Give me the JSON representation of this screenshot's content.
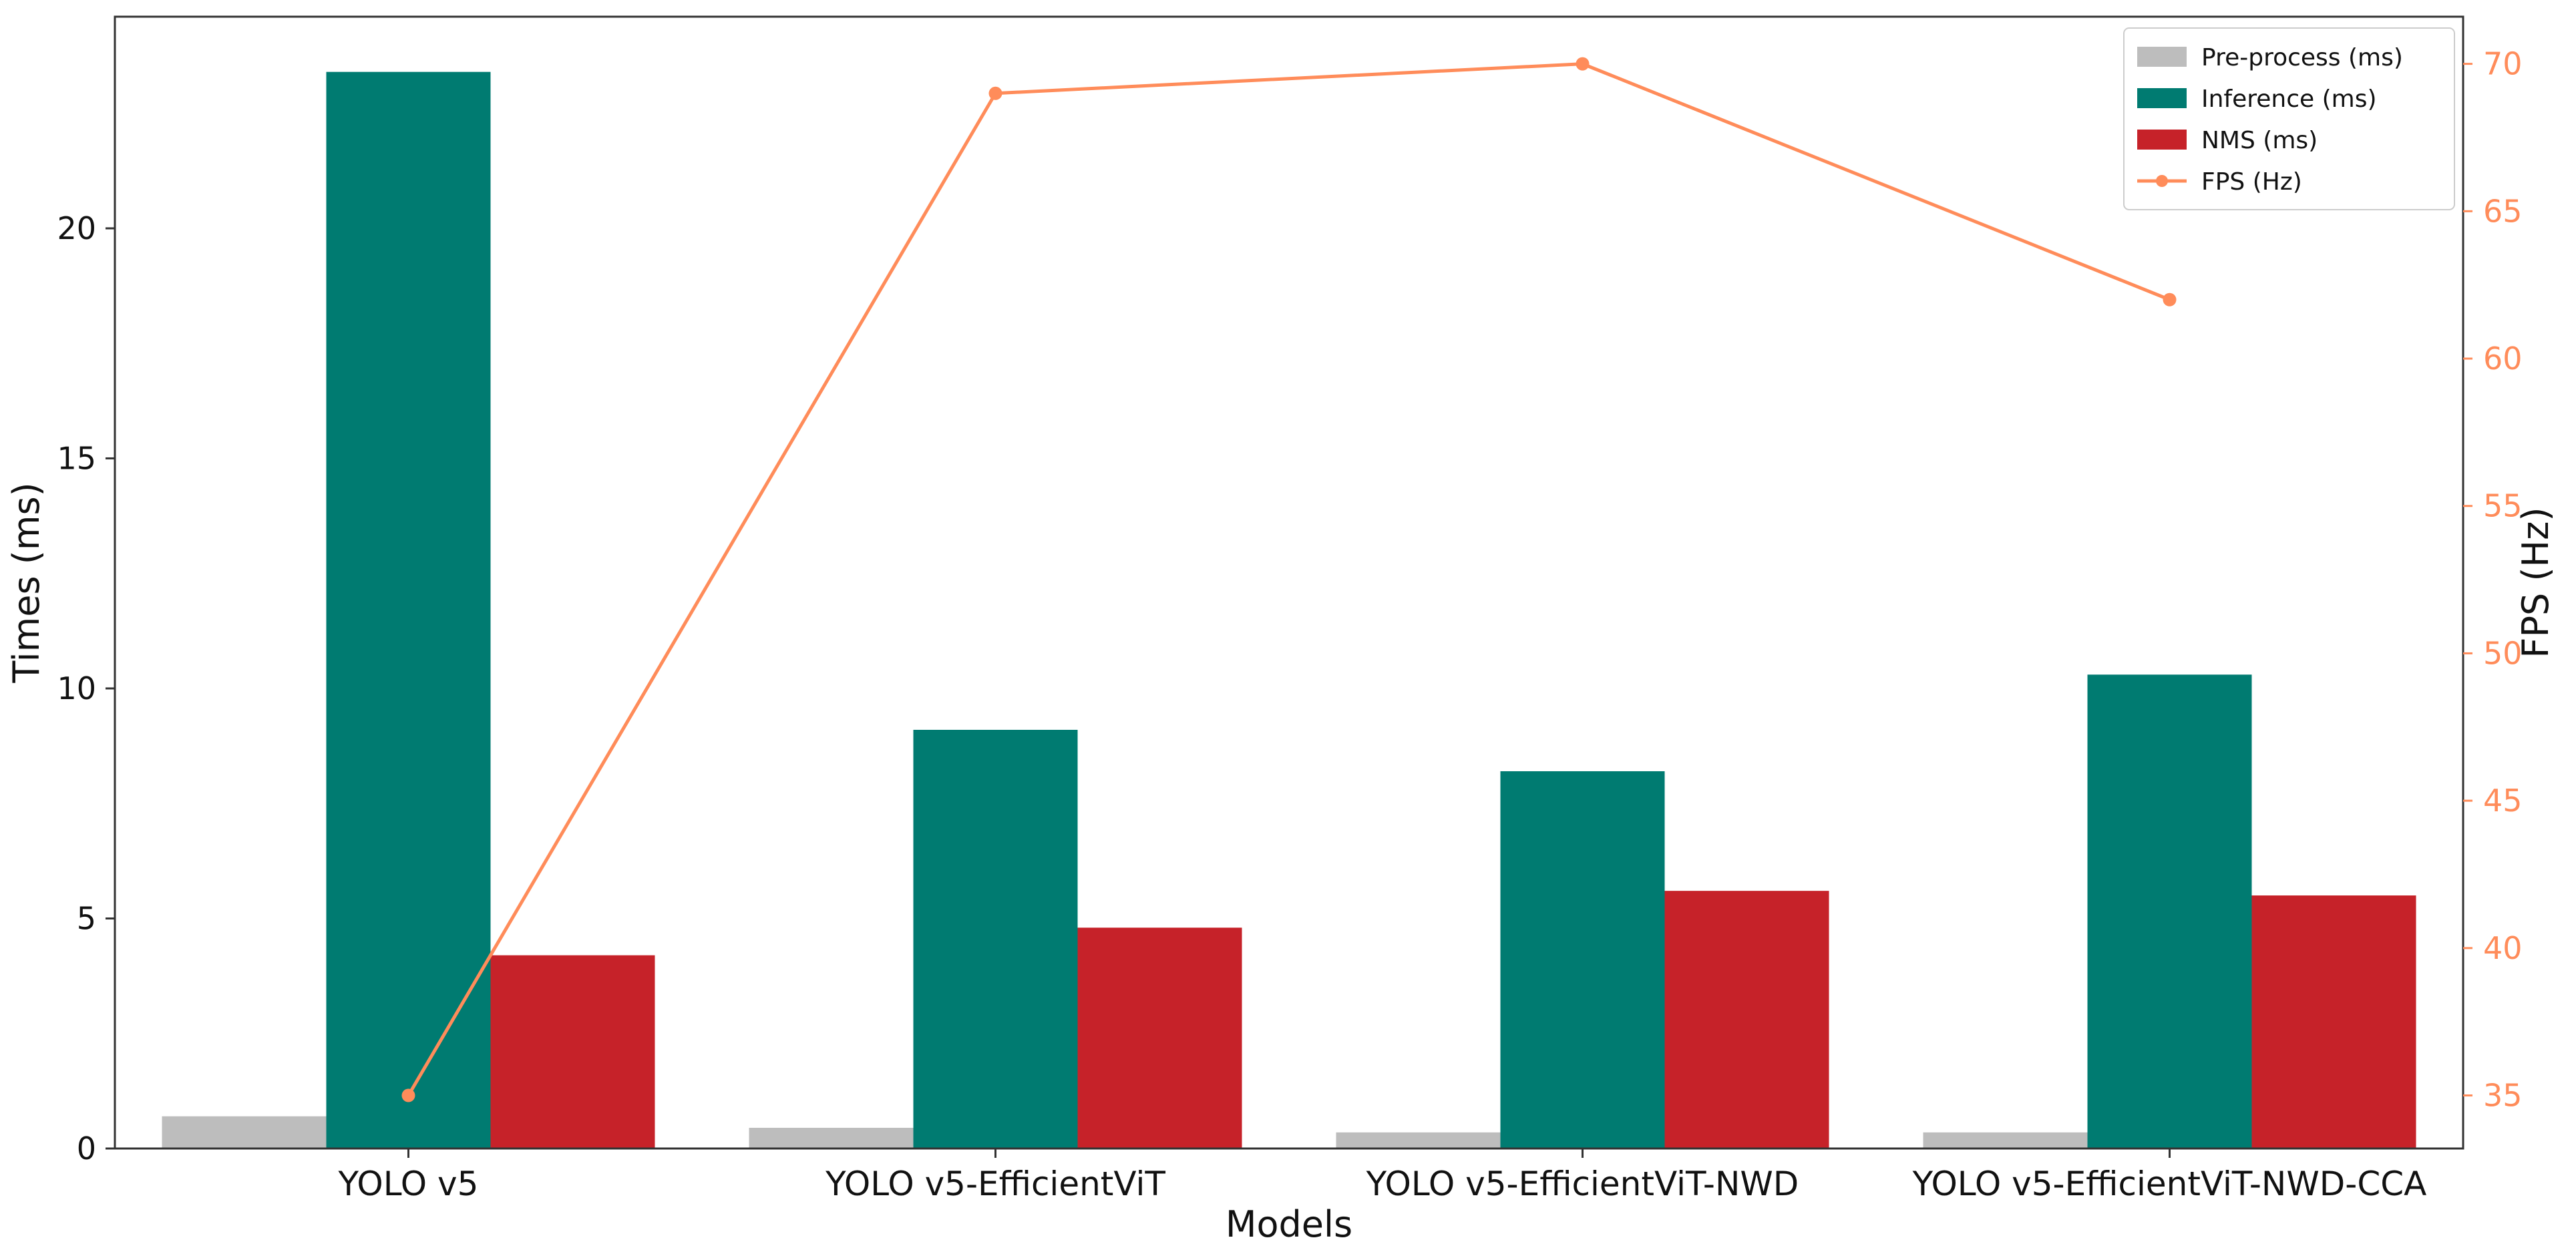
{
  "chart_data": {
    "type": "bar",
    "xlabel": "Models",
    "ylabel": "Times (ms)",
    "y2label": "FPS (Hz)",
    "categories": [
      "YOLO v5",
      "YOLO v5-EfficientViT",
      "YOLO v5-EfficientViT-NWD",
      "YOLO v5-EfficientViT-NWD-CCA"
    ],
    "ylim": [
      0,
      24.6
    ],
    "y2lim": [
      33.2,
      71.6
    ],
    "yticks": [
      0,
      5,
      10,
      15,
      20
    ],
    "y2ticks": [
      35,
      40,
      45,
      50,
      55,
      60,
      65,
      70
    ],
    "grid": false,
    "legend_position": "top-right",
    "series": [
      {
        "name": "Pre-process (ms)",
        "type": "bar",
        "axis": "left",
        "color": "#bdbdbd",
        "values": [
          0.7,
          0.45,
          0.35,
          0.35
        ]
      },
      {
        "name": "Inference (ms)",
        "type": "bar",
        "axis": "left",
        "color": "#007b71",
        "values": [
          23.4,
          9.1,
          8.2,
          10.3
        ]
      },
      {
        "name": "NMS (ms)",
        "type": "bar",
        "axis": "left",
        "color": "#c62229",
        "values": [
          4.2,
          4.8,
          5.6,
          5.5
        ]
      },
      {
        "name": "FPS (Hz)",
        "type": "line",
        "axis": "right",
        "color": "#ff8c5a",
        "values": [
          35,
          69,
          70,
          62
        ]
      }
    ]
  }
}
